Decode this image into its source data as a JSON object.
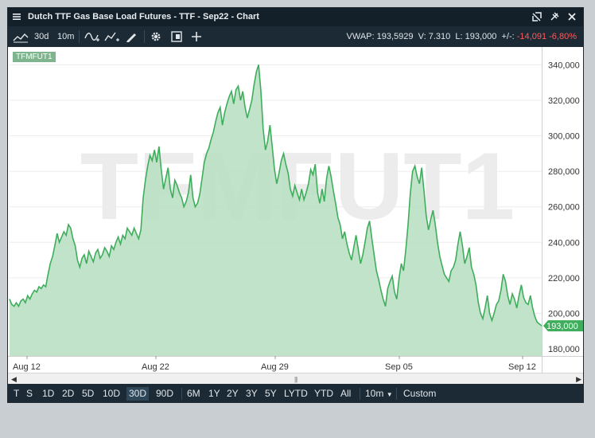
{
  "window": {
    "title": "Dutch TTF Gas Base Load Futures - TTF - Sep22 - Chart"
  },
  "toolbar": {
    "items": [
      "30d",
      "10m"
    ],
    "vwap_label": "VWAP:",
    "vwap": "193,5929",
    "volume_label": "V:",
    "volume": "7.310",
    "last_label": "L:",
    "last": "193,000",
    "change_label": "+/-:",
    "change": "-14,091",
    "change_pct": "-6,80%"
  },
  "chart": {
    "series_tag": "TFMFUT1",
    "watermark": "TFMFUT1",
    "last_price_marker": "193,000",
    "colors": {
      "line": "#3fae5c",
      "fill": "#b9e0c3",
      "marker": "#3fae5c"
    }
  },
  "periods": {
    "items": [
      "T",
      "S",
      "1D",
      "2D",
      "5D",
      "10D",
      "30D",
      "90D",
      "6M",
      "1Y",
      "2Y",
      "3Y",
      "5Y",
      "LYTD",
      "YTD",
      "All",
      "10m",
      "Custom"
    ],
    "selected": "30D"
  },
  "chart_data": {
    "type": "area",
    "title": "",
    "xlabel": "",
    "ylabel": "",
    "ylim": [
      176000,
      350000
    ],
    "y_ticks": [
      "180,000",
      "200,000",
      "220,000",
      "240,000",
      "260,000",
      "280,000",
      "300,000",
      "320,000",
      "340,000"
    ],
    "x_ticks": [
      "Aug 12",
      "Aug 22",
      "Aug 29",
      "Sep 05",
      "Sep 12"
    ],
    "grid": true,
    "legend": "none",
    "series": [
      {
        "values": [
          208000,
          205000,
          204000,
          206000,
          204000,
          207000,
          208000,
          206000,
          210000,
          208000,
          211000,
          213000,
          212000,
          215000,
          214000,
          216000,
          215000,
          222000,
          228000,
          232000,
          238000,
          245000,
          240000,
          243000,
          246000,
          244000,
          250000,
          248000,
          242000,
          238000,
          230000,
          226000,
          231000,
          233000,
          228000,
          235000,
          232000,
          229000,
          234000,
          236000,
          231000,
          233000,
          237000,
          235000,
          232000,
          238000,
          236000,
          240000,
          243000,
          239000,
          244000,
          242000,
          248000,
          246000,
          244000,
          248000,
          245000,
          242000,
          247000,
          265000,
          275000,
          283000,
          289000,
          286000,
          292000,
          285000,
          294000,
          281000,
          270000,
          276000,
          282000,
          270000,
          265000,
          275000,
          272000,
          268000,
          265000,
          260000,
          263000,
          268000,
          278000,
          265000,
          260000,
          262000,
          267000,
          276000,
          285000,
          290000,
          293000,
          298000,
          302000,
          308000,
          313000,
          316000,
          306000,
          313000,
          318000,
          322000,
          325000,
          318000,
          326000,
          328000,
          320000,
          325000,
          316000,
          310000,
          315000,
          320000,
          329000,
          336000,
          340000,
          325000,
          304000,
          292000,
          297000,
          306000,
          294000,
          281000,
          273000,
          279000,
          286000,
          290000,
          284000,
          279000,
          270000,
          266000,
          272000,
          268000,
          264000,
          270000,
          264000,
          268000,
          273000,
          281000,
          278000,
          284000,
          268000,
          262000,
          270000,
          263000,
          276000,
          283000,
          277000,
          269000,
          262000,
          254000,
          250000,
          242000,
          246000,
          239000,
          234000,
          230000,
          237000,
          244000,
          236000,
          228000,
          233000,
          240000,
          248000,
          252000,
          242000,
          233000,
          224000,
          219000,
          213000,
          208000,
          204000,
          214000,
          218000,
          221000,
          212000,
          208000,
          220000,
          228000,
          224000,
          236000,
          250000,
          268000,
          280000,
          283000,
          277000,
          273000,
          282000,
          269000,
          255000,
          247000,
          253000,
          258000,
          250000,
          240000,
          232000,
          227000,
          222000,
          220000,
          218000,
          224000,
          226000,
          230000,
          239000,
          246000,
          238000,
          228000,
          232000,
          237000,
          226000,
          222000,
          216000,
          206000,
          200000,
          197000,
          203000,
          210000,
          200000,
          196000,
          200000,
          205000,
          207000,
          213000,
          222000,
          218000,
          210000,
          205000,
          211000,
          208000,
          203000,
          210000,
          216000,
          209000,
          206000,
          205000,
          210000,
          203000,
          198000,
          195000,
          194000,
          193000
        ]
      }
    ]
  }
}
